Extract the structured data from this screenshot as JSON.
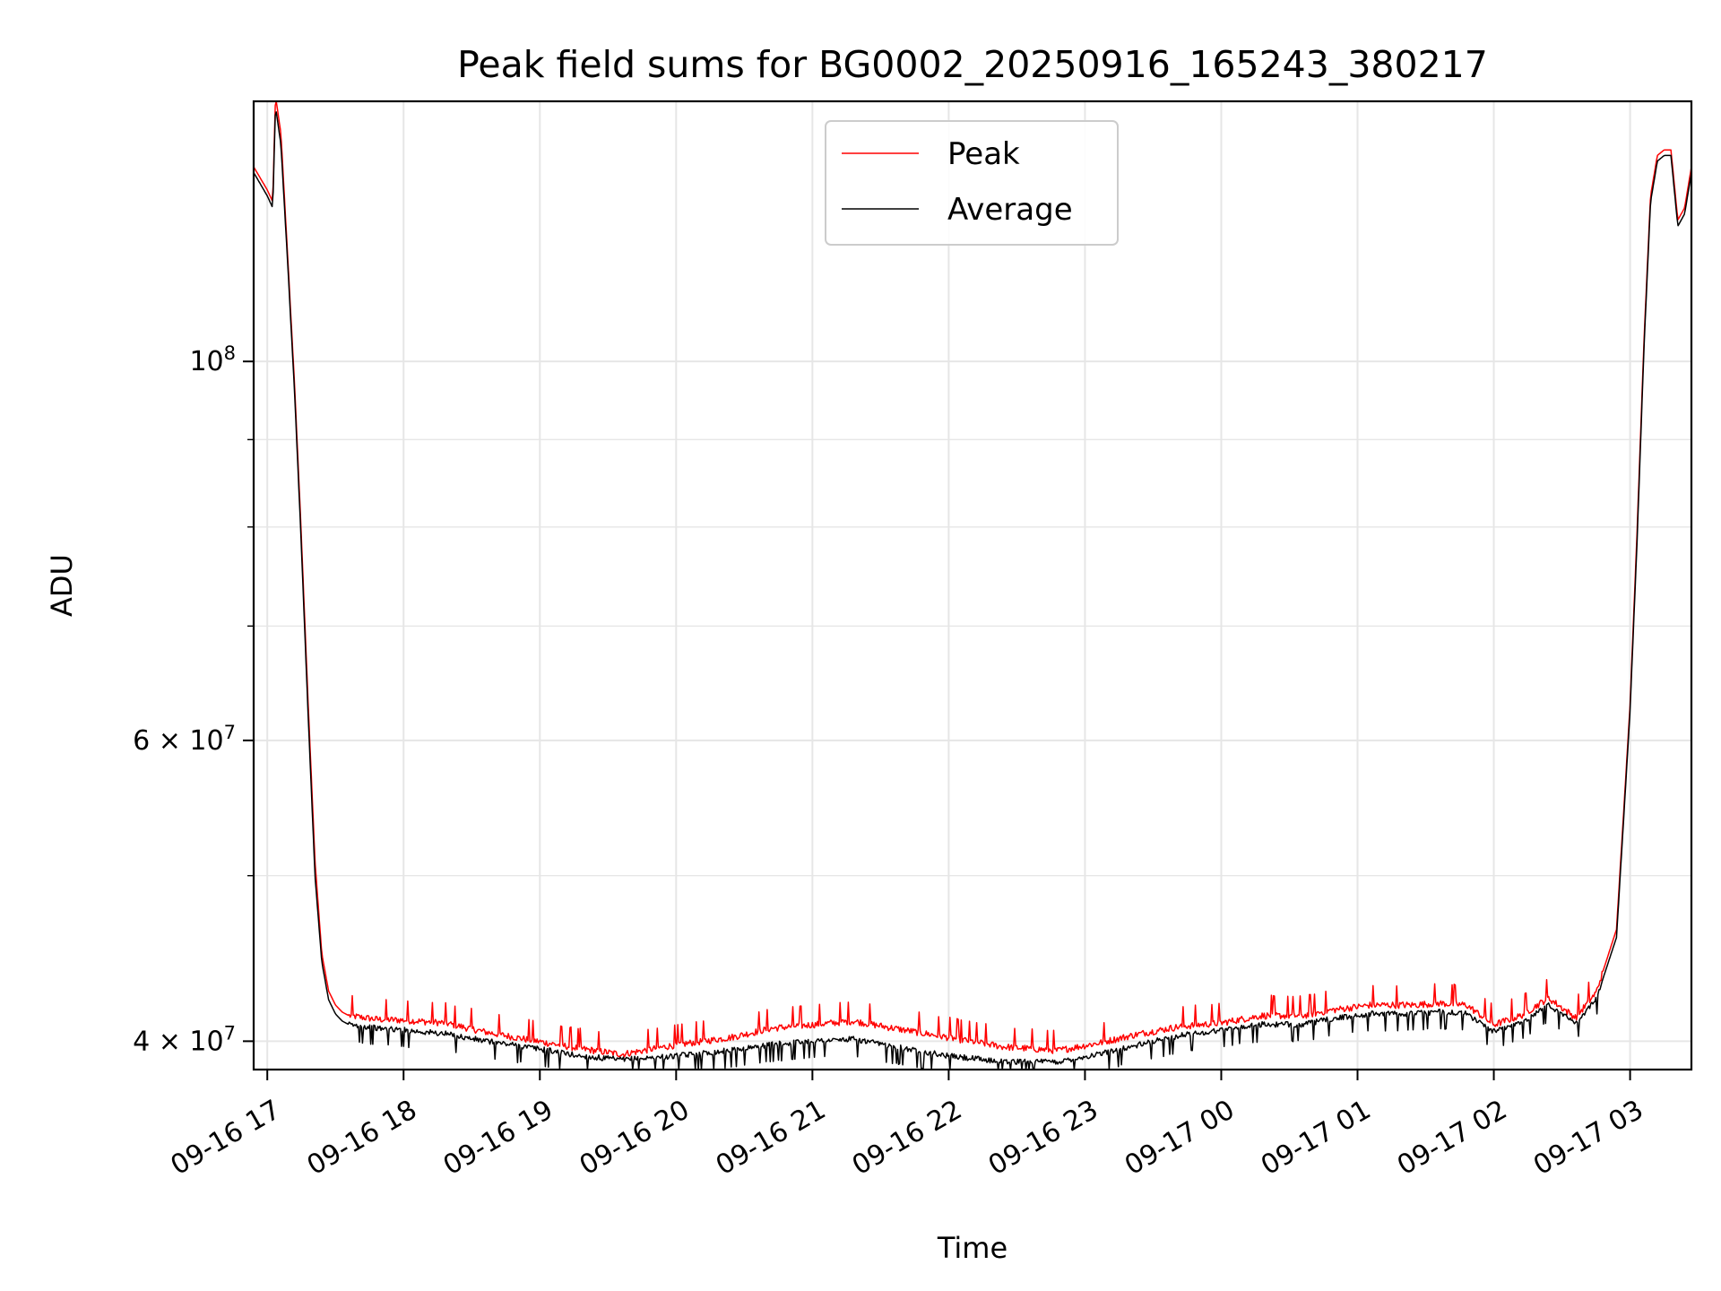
{
  "chart_data": {
    "type": "line",
    "title": "Peak field sums for BG0002_20250916_165243_380217",
    "xlabel": "Time",
    "ylabel": "ADU",
    "yscale": "log",
    "ylim": [
      38500000,
      142000000
    ],
    "xlim_hours": [
      -0.1,
      10.45
    ],
    "grid": true,
    "legend_position": "upper center",
    "x_ticks": [
      {
        "hour": 0,
        "label": "09-16 17"
      },
      {
        "hour": 1,
        "label": "09-16 18"
      },
      {
        "hour": 2,
        "label": "09-16 19"
      },
      {
        "hour": 3,
        "label": "09-16 20"
      },
      {
        "hour": 4,
        "label": "09-16 21"
      },
      {
        "hour": 5,
        "label": "09-16 22"
      },
      {
        "hour": 6,
        "label": "09-16 23"
      },
      {
        "hour": 7,
        "label": "09-17 00"
      },
      {
        "hour": 8,
        "label": "09-17 01"
      },
      {
        "hour": 9,
        "label": "09-17 02"
      },
      {
        "hour": 10,
        "label": "09-17 03"
      }
    ],
    "y_major_ticks": [
      {
        "value": 40000000,
        "base": "4 × 10",
        "exp": "7"
      },
      {
        "value": 60000000,
        "base": "6 × 10",
        "exp": "7"
      },
      {
        "value": 100000000,
        "base": "10",
        "exp": "8"
      }
    ],
    "y_minor_ticks": [
      50000000,
      70000000,
      80000000,
      90000000
    ],
    "series": [
      {
        "name": "Peak",
        "color": "#ff0000",
        "x": [
          -0.1,
          0.0,
          0.02,
          0.04,
          0.06,
          0.1,
          0.15,
          0.2,
          0.25,
          0.3,
          0.35,
          0.4,
          0.45,
          0.5,
          0.55,
          0.6,
          0.7,
          0.8,
          1.0,
          1.3,
          1.6,
          1.9,
          2.3,
          2.6,
          3.0,
          3.4,
          3.7,
          4.0,
          4.3,
          4.6,
          5.0,
          5.4,
          5.8,
          6.1,
          6.4,
          6.7,
          7.0,
          7.3,
          7.6,
          7.8,
          8.1,
          8.4,
          8.6,
          8.8,
          9.0,
          9.2,
          9.4,
          9.6,
          9.75,
          9.9,
          9.95,
          10.0,
          10.05,
          10.1,
          10.15,
          10.2,
          10.25,
          10.3,
          10.35,
          10.4,
          10.45
        ],
        "y": [
          130000000,
          126000000,
          125000000,
          124000000,
          143000000,
          136000000,
          115000000,
          97000000,
          79000000,
          63000000,
          51000000,
          45000000,
          42800000,
          42000000,
          41600000,
          41400000,
          41300000,
          41200000,
          41150000,
          41000000,
          40500000,
          40100000,
          39600000,
          39300000,
          39800000,
          40200000,
          40700000,
          40900000,
          41100000,
          40700000,
          40200000,
          39700000,
          39500000,
          39900000,
          40400000,
          40800000,
          41000000,
          41400000,
          41400000,
          41700000,
          42000000,
          42000000,
          42100000,
          42000000,
          40900000,
          41400000,
          42400000,
          41300000,
          42700000,
          46500000,
          54000000,
          63000000,
          79000000,
          102000000,
          125000000,
          132000000,
          133000000,
          133000000,
          121000000,
          123000000,
          130000000
        ]
      },
      {
        "name": "Average",
        "color": "#000000",
        "x": [
          -0.1,
          0.0,
          0.02,
          0.04,
          0.06,
          0.1,
          0.15,
          0.2,
          0.25,
          0.3,
          0.35,
          0.4,
          0.45,
          0.5,
          0.55,
          0.6,
          0.7,
          0.8,
          1.0,
          1.3,
          1.6,
          1.9,
          2.3,
          2.6,
          3.0,
          3.4,
          3.7,
          4.0,
          4.3,
          4.6,
          5.0,
          5.4,
          5.8,
          6.1,
          6.4,
          6.7,
          7.0,
          7.3,
          7.6,
          7.8,
          8.1,
          8.4,
          8.6,
          8.8,
          9.0,
          9.2,
          9.4,
          9.6,
          9.75,
          9.9,
          9.95,
          10.0,
          10.05,
          10.1,
          10.15,
          10.2,
          10.25,
          10.3,
          10.35,
          10.4,
          10.45
        ],
        "y": [
          129000000,
          125000000,
          124000000,
          123000000,
          141000000,
          134000000,
          114000000,
          96000000,
          78000000,
          62000000,
          50000000,
          44500000,
          42300000,
          41500000,
          41100000,
          40900000,
          40800000,
          40700000,
          40600000,
          40400000,
          40000000,
          39700000,
          39200000,
          39000000,
          39200000,
          39500000,
          39800000,
          40000000,
          40100000,
          39700000,
          39200000,
          38900000,
          38900000,
          39300000,
          39800000,
          40300000,
          40600000,
          40900000,
          40900000,
          41200000,
          41500000,
          41500000,
          41600000,
          41500000,
          40500000,
          41000000,
          42000000,
          41000000,
          42300000,
          46000000,
          53500000,
          62500000,
          78000000,
          101000000,
          124000000,
          131000000,
          132000000,
          132000000,
          120000000,
          122000000,
          129000000
        ]
      }
    ]
  }
}
